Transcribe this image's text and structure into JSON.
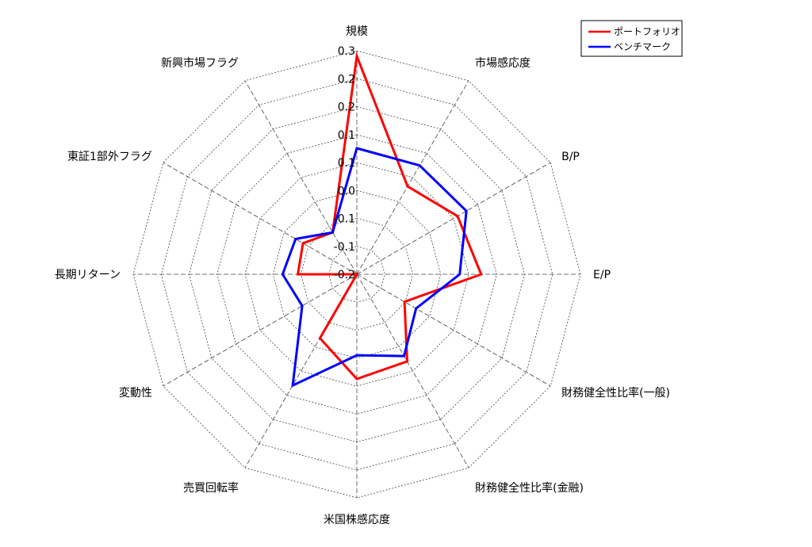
{
  "chart_data": {
    "type": "radar",
    "axes": [
      "規模",
      "市場感応度",
      "B/P",
      "E/P",
      "財務健全性比率(一般)",
      "財務健全性比率(金融)",
      "米国株感応度",
      "売買回転率",
      "変動性",
      "長期リターン",
      "東証1部外フラグ",
      "新興市場フラグ"
    ],
    "tick_labels": [
      "-0.2",
      "-0.1",
      "-0.1",
      "0.0",
      "0.1",
      "0.1",
      "0.2",
      "0.2",
      "0.3"
    ],
    "r_min": -0.2,
    "r_max": 0.3,
    "grid_levels": [
      -0.2,
      -0.1375,
      -0.075,
      -0.0125,
      0.05,
      0.1125,
      0.175,
      0.2375,
      0.3
    ],
    "grid": true,
    "legend_position": "top-right",
    "series": [
      {
        "name": "ポートフォリオ",
        "color": "#ff0000",
        "values": [
          0.288,
          0.027,
          0.06,
          0.078,
          -0.077,
          0.025,
          0.034,
          -0.035,
          -0.2,
          -0.068,
          -0.061,
          -0.092
        ]
      },
      {
        "name": "ベンチマーク",
        "color": "#0000ff",
        "values": [
          0.082,
          0.081,
          0.083,
          0.03,
          -0.047,
          0.011,
          -0.019,
          0.087,
          -0.059,
          -0.034,
          -0.042,
          -0.092
        ]
      }
    ]
  }
}
